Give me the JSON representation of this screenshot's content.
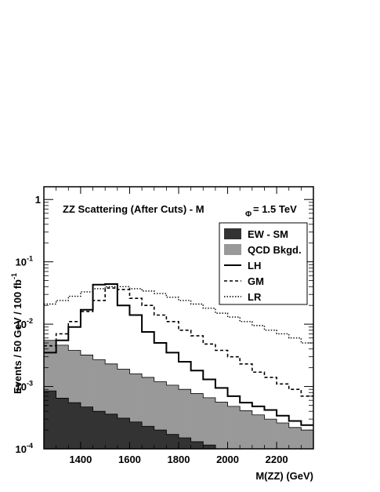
{
  "chart_data": {
    "type": "histogram-step",
    "title_main": "ZZ Scattering (After Cuts) - M",
    "title_sub": "Φ",
    "title_tail": "= 1.5 TeV",
    "xlabel": "M(ZZ) (GeV)",
    "ylabel_main": "Events / 50 GeV / 100 fb",
    "ylabel_sup": "-1",
    "xlim": [
      1250,
      2350
    ],
    "ylim": [
      0.0001,
      1.6
    ],
    "yscale": "log",
    "bin_width": 50,
    "x_ticks": [
      {
        "value": 1400,
        "label": "1400"
      },
      {
        "value": 1600,
        "label": "1600"
      },
      {
        "value": 1800,
        "label": "1800"
      },
      {
        "value": 2000,
        "label": "2000"
      },
      {
        "value": 2200,
        "label": "2200"
      }
    ],
    "y_ticks": [
      {
        "value": 1,
        "base": "1",
        "exp": ""
      },
      {
        "value": 0.1,
        "base": "10",
        "exp": "-1"
      },
      {
        "value": 0.01,
        "base": "10",
        "exp": "-2"
      },
      {
        "value": 0.001,
        "base": "10",
        "exp": "-3"
      },
      {
        "value": 0.0001,
        "base": "10",
        "exp": "-4"
      }
    ],
    "legend_placement": "top-right",
    "bins_start": [
      1250,
      1300,
      1350,
      1400,
      1450,
      1500,
      1550,
      1600,
      1650,
      1700,
      1750,
      1800,
      1850,
      1900,
      1950,
      2000,
      2050,
      2100,
      2150,
      2200,
      2250,
      2300
    ],
    "series": [
      {
        "name": "EW - SM",
        "style": "filled",
        "color": "#333333",
        "values": [
          0.00085,
          0.00065,
          0.00055,
          0.00047,
          0.0004,
          0.00036,
          0.00031,
          0.00027,
          0.00023,
          0.0002,
          0.00017,
          0.00015,
          0.00013,
          0.000115,
          0.0001,
          0.0001,
          0.0001,
          0.0001,
          0.0001,
          0.0001,
          0.0001,
          0.0001
        ]
      },
      {
        "name": "QCD Bkgd.",
        "style": "filled",
        "color": "#999999",
        "values": [
          0.0055,
          0.0046,
          0.0038,
          0.0032,
          0.0027,
          0.0023,
          0.0019,
          0.0016,
          0.0014,
          0.0012,
          0.00105,
          0.0009,
          0.00077,
          0.00066,
          0.00056,
          0.00048,
          0.00041,
          0.00035,
          0.0003,
          0.00026,
          0.00022,
          0.0002
        ]
      },
      {
        "name": "LH",
        "style": "solid",
        "values": [
          0.0035,
          0.0055,
          0.009,
          0.017,
          0.043,
          0.044,
          0.02,
          0.014,
          0.0075,
          0.005,
          0.0035,
          0.0025,
          0.0018,
          0.0013,
          0.00095,
          0.0007,
          0.00055,
          0.00048,
          0.00042,
          0.00034,
          0.00028,
          0.00024
        ]
      },
      {
        "name": "GM",
        "style": "dashed",
        "values": [
          0.0045,
          0.007,
          0.011,
          0.016,
          0.024,
          0.038,
          0.036,
          0.026,
          0.02,
          0.014,
          0.011,
          0.008,
          0.0065,
          0.0048,
          0.0038,
          0.003,
          0.0023,
          0.0017,
          0.0014,
          0.0011,
          0.0009,
          0.0007
        ]
      },
      {
        "name": "LR",
        "style": "dotted",
        "values": [
          0.021,
          0.024,
          0.028,
          0.033,
          0.037,
          0.04,
          0.04,
          0.037,
          0.034,
          0.031,
          0.027,
          0.024,
          0.021,
          0.018,
          0.015,
          0.013,
          0.011,
          0.0095,
          0.008,
          0.007,
          0.006,
          0.005
        ]
      }
    ]
  }
}
